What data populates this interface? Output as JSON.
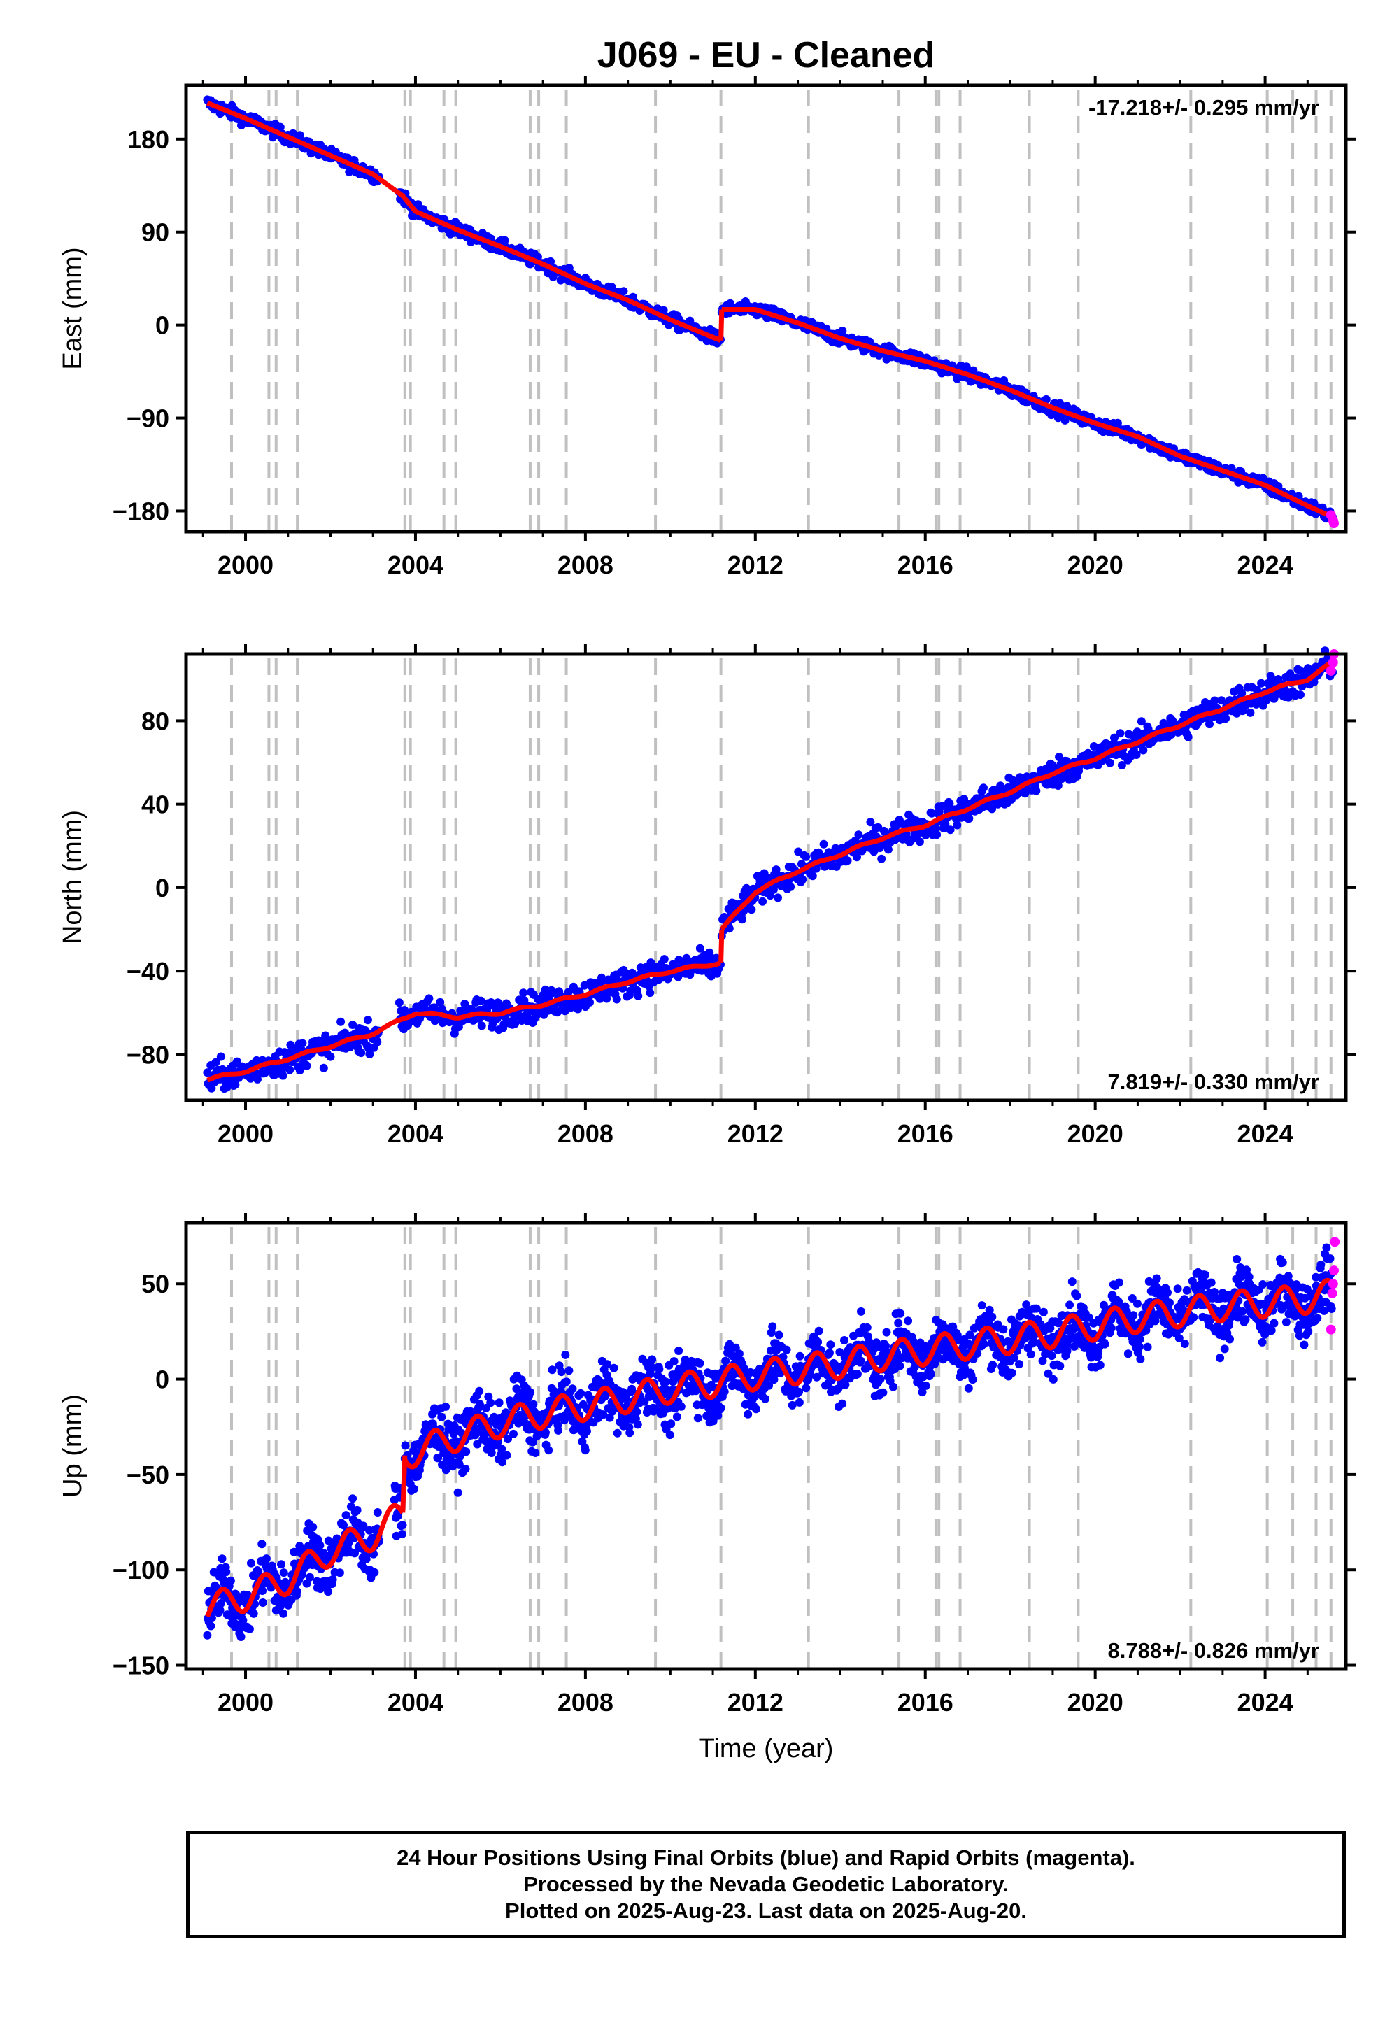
{
  "title": "J069  - EU - Cleaned",
  "xlabel": "Time (year)",
  "caption": [
    "24 Hour Positions Using Final Orbits (blue) and Rapid Orbits (magenta).",
    "Processed by the Nevada Geodetic Laboratory.",
    "Plotted on 2025-Aug-23. Last data on 2025-Aug-20."
  ],
  "colors": {
    "final_orbits": "#0000ff",
    "rapid_orbits": "#ff00ff",
    "model_fit": "#ff0000",
    "equipment_change_lines": "#c0c0c0"
  },
  "chart_data": [
    {
      "type": "scatter",
      "panel": "East",
      "ylabel": "East (mm)",
      "rate_annotation": "-17.218+/- 0.295 mm/yr",
      "annotation_position": "top-right",
      "xlim": [
        1998.6,
        2025.9
      ],
      "ylim": [
        -200,
        232
      ],
      "x_ticks": [
        2000,
        2004,
        2008,
        2012,
        2016,
        2020,
        2024
      ],
      "y_ticks": [
        -180,
        -90,
        0,
        90,
        180
      ],
      "y_tick_labels": [
        "−180",
        "−90",
        "0",
        "90",
        "180"
      ],
      "series": [
        {
          "values_description_free": true,
          "x": [
            1999.1,
            2000,
            2001,
            2002,
            2003,
            2003.7,
            2004,
            2005,
            2006,
            2007,
            2008,
            2009,
            2010,
            2011.19
          ],
          "y": [
            215,
            200,
            182,
            164,
            146,
            125,
            110,
            92,
            76,
            59,
            40,
            24,
            5,
            -15
          ]
        },
        {
          "x": [
            2011.21,
            2012,
            2013,
            2014,
            2015,
            2016,
            2017,
            2018,
            2019,
            2020,
            2021,
            2022,
            2023,
            2024,
            2025,
            2025.6
          ],
          "y": [
            15,
            15,
            2,
            -13,
            -25,
            -35,
            -48,
            -63,
            -80,
            -95,
            -108,
            -127,
            -141,
            -155,
            -175,
            -186
          ]
        }
      ],
      "rapid_orbit_points": {
        "x": [
          2025.55,
          2025.6,
          2025.62
        ],
        "y": [
          -184,
          -189,
          -192
        ]
      }
    },
    {
      "type": "scatter",
      "panel": "North",
      "ylabel": "North (mm)",
      "rate_annotation": "7.819+/- 0.330 mm/yr",
      "annotation_position": "bottom-right",
      "xlim": [
        1998.6,
        2025.9
      ],
      "ylim": [
        -102,
        112
      ],
      "x_ticks": [
        2000,
        2004,
        2008,
        2012,
        2016,
        2020,
        2024
      ],
      "y_ticks": [
        -80,
        -40,
        0,
        40,
        80
      ],
      "y_tick_labels": [
        "−80",
        "−40",
        "0",
        "40",
        "80"
      ],
      "series": [
        {
          "x": [
            1999.1,
            2000,
            2001,
            2002,
            2003,
            2004,
            2005,
            2006,
            2007,
            2008,
            2009,
            2010,
            2011.19
          ],
          "y": [
            -92,
            -88,
            -82,
            -76,
            -70,
            -60,
            -62,
            -60,
            -56,
            -51,
            -45,
            -40,
            -36
          ]
        },
        {
          "x": [
            2011.21,
            2012,
            2013,
            2014,
            2015,
            2016,
            2017,
            2018,
            2019,
            2020,
            2021,
            2022,
            2023,
            2024,
            2025,
            2025.6
          ],
          "y": [
            -20,
            -2,
            8,
            16,
            24,
            30,
            38,
            46,
            55,
            62,
            70,
            78,
            86,
            94,
            100,
            108
          ]
        }
      ],
      "rapid_orbit_points": {
        "x": [
          2025.55,
          2025.6,
          2025.62
        ],
        "y": [
          104,
          108,
          112
        ]
      }
    },
    {
      "type": "scatter",
      "panel": "Up",
      "ylabel": "Up (mm)",
      "rate_annotation": "8.788+/- 0.826 mm/yr",
      "annotation_position": "bottom-right",
      "xlim": [
        1998.6,
        2025.9
      ],
      "ylim": [
        -152,
        82
      ],
      "x_ticks": [
        2000,
        2004,
        2008,
        2012,
        2016,
        2020,
        2024
      ],
      "y_ticks": [
        -150,
        -100,
        -50,
        0,
        50
      ],
      "y_tick_labels": [
        "−150",
        "−100",
        "−50",
        "0",
        "50"
      ],
      "series": [
        {
          "x": [
            1999.1,
            2000,
            2001,
            2002,
            2003,
            2003.7
          ],
          "y": [
            -120,
            -114,
            -105,
            -90,
            -82,
            -70
          ]
        },
        {
          "x": [
            2003.75,
            2004,
            2005,
            2006,
            2007,
            2008,
            2009,
            2010,
            2011,
            2012,
            2013,
            2014,
            2015,
            2016,
            2017,
            2018,
            2019,
            2020,
            2021,
            2022,
            2023,
            2024,
            2025,
            2025.6
          ],
          "y": [
            -40,
            -38,
            -30,
            -23,
            -18,
            -14,
            -10,
            -5,
            -2,
            2,
            5,
            8,
            12,
            15,
            18,
            21,
            24,
            28,
            32,
            35,
            38,
            40,
            42,
            45
          ]
        }
      ],
      "rapid_orbit_points": {
        "x": [
          2025.55,
          2025.58,
          2025.6,
          2025.62,
          2025.64
        ],
        "y": [
          26,
          45,
          50,
          57,
          72
        ]
      }
    }
  ],
  "equipment_change_years": [
    1999.67,
    2000.55,
    2000.72,
    2001.22,
    2003.75,
    2003.88,
    2004.67,
    2004.95,
    2006.7,
    2006.9,
    2007.55,
    2009.65,
    2011.19,
    2013.25,
    2015.38,
    2016.25,
    2016.32,
    2016.82,
    2018.45,
    2019.6,
    2022.25,
    2024.05,
    2024.65,
    2025.2,
    2025.55
  ]
}
